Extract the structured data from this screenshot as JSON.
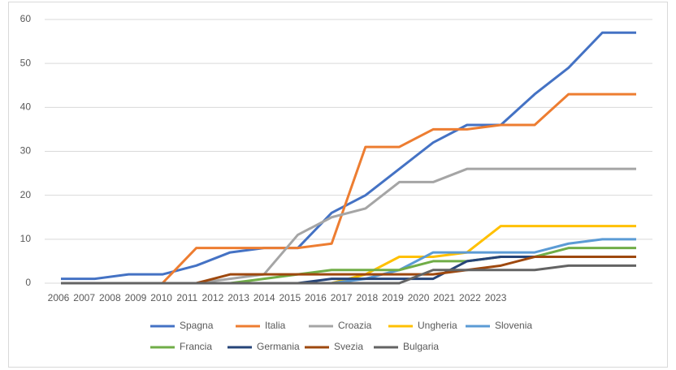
{
  "chart_data": {
    "type": "line",
    "categories": [
      "2006",
      "2007",
      "2008",
      "2009",
      "2010",
      "2011",
      "2012",
      "2013",
      "2014",
      "2015",
      "2016",
      "2017",
      "2018",
      "2019",
      "2020",
      "2021",
      "2022",
      "2023"
    ],
    "ylim": [
      0,
      60
    ],
    "yticks": [
      0,
      10,
      20,
      30,
      40,
      50,
      60
    ],
    "grid": true,
    "legend": "bottom",
    "series": [
      {
        "name": "Spagna",
        "color": "#4472c4",
        "values": [
          1,
          1,
          2,
          2,
          4,
          7,
          8,
          8,
          16,
          20,
          26,
          32,
          36,
          36,
          43,
          49,
          57,
          57
        ]
      },
      {
        "name": "Italia",
        "color": "#ed7d31",
        "values": [
          0,
          0,
          0,
          0,
          8,
          8,
          8,
          8,
          9,
          31,
          31,
          35,
          35,
          36,
          36,
          43,
          43,
          43
        ]
      },
      {
        "name": "Croazia",
        "color": "#a5a5a5",
        "values": [
          0,
          0,
          0,
          0,
          0,
          1,
          2,
          11,
          15,
          17,
          23,
          23,
          26,
          26,
          26,
          26,
          26,
          26
        ]
      },
      {
        "name": "Ungheria",
        "color": "#ffc000",
        "values": [
          0,
          0,
          0,
          0,
          0,
          0,
          0,
          0,
          0,
          2,
          6,
          6,
          7,
          13,
          13,
          13,
          13,
          13
        ]
      },
      {
        "name": "Slovenia",
        "color": "#5b9bd5",
        "values": [
          0,
          0,
          0,
          0,
          0,
          0,
          0,
          0,
          0,
          1,
          3,
          7,
          7,
          7,
          7,
          9,
          10,
          10
        ]
      },
      {
        "name": "Francia",
        "color": "#70ad47",
        "values": [
          0,
          0,
          0,
          0,
          0,
          0,
          1,
          2,
          3,
          3,
          3,
          5,
          5,
          6,
          6,
          8,
          8,
          8
        ]
      },
      {
        "name": "Germania",
        "color": "#264478",
        "values": [
          0,
          0,
          0,
          0,
          0,
          0,
          0,
          0,
          1,
          1,
          1,
          1,
          5,
          6,
          6,
          6,
          6,
          6
        ]
      },
      {
        "name": "Svezia",
        "color": "#9e480e",
        "values": [
          0,
          0,
          0,
          0,
          0,
          2,
          2,
          2,
          2,
          2,
          2,
          2,
          3,
          4,
          6,
          6,
          6,
          6
        ]
      },
      {
        "name": "Bulgaria",
        "color": "#636363",
        "values": [
          0,
          0,
          0,
          0,
          0,
          0,
          0,
          0,
          0,
          0,
          0,
          3,
          3,
          3,
          3,
          4,
          4,
          4
        ]
      }
    ]
  }
}
